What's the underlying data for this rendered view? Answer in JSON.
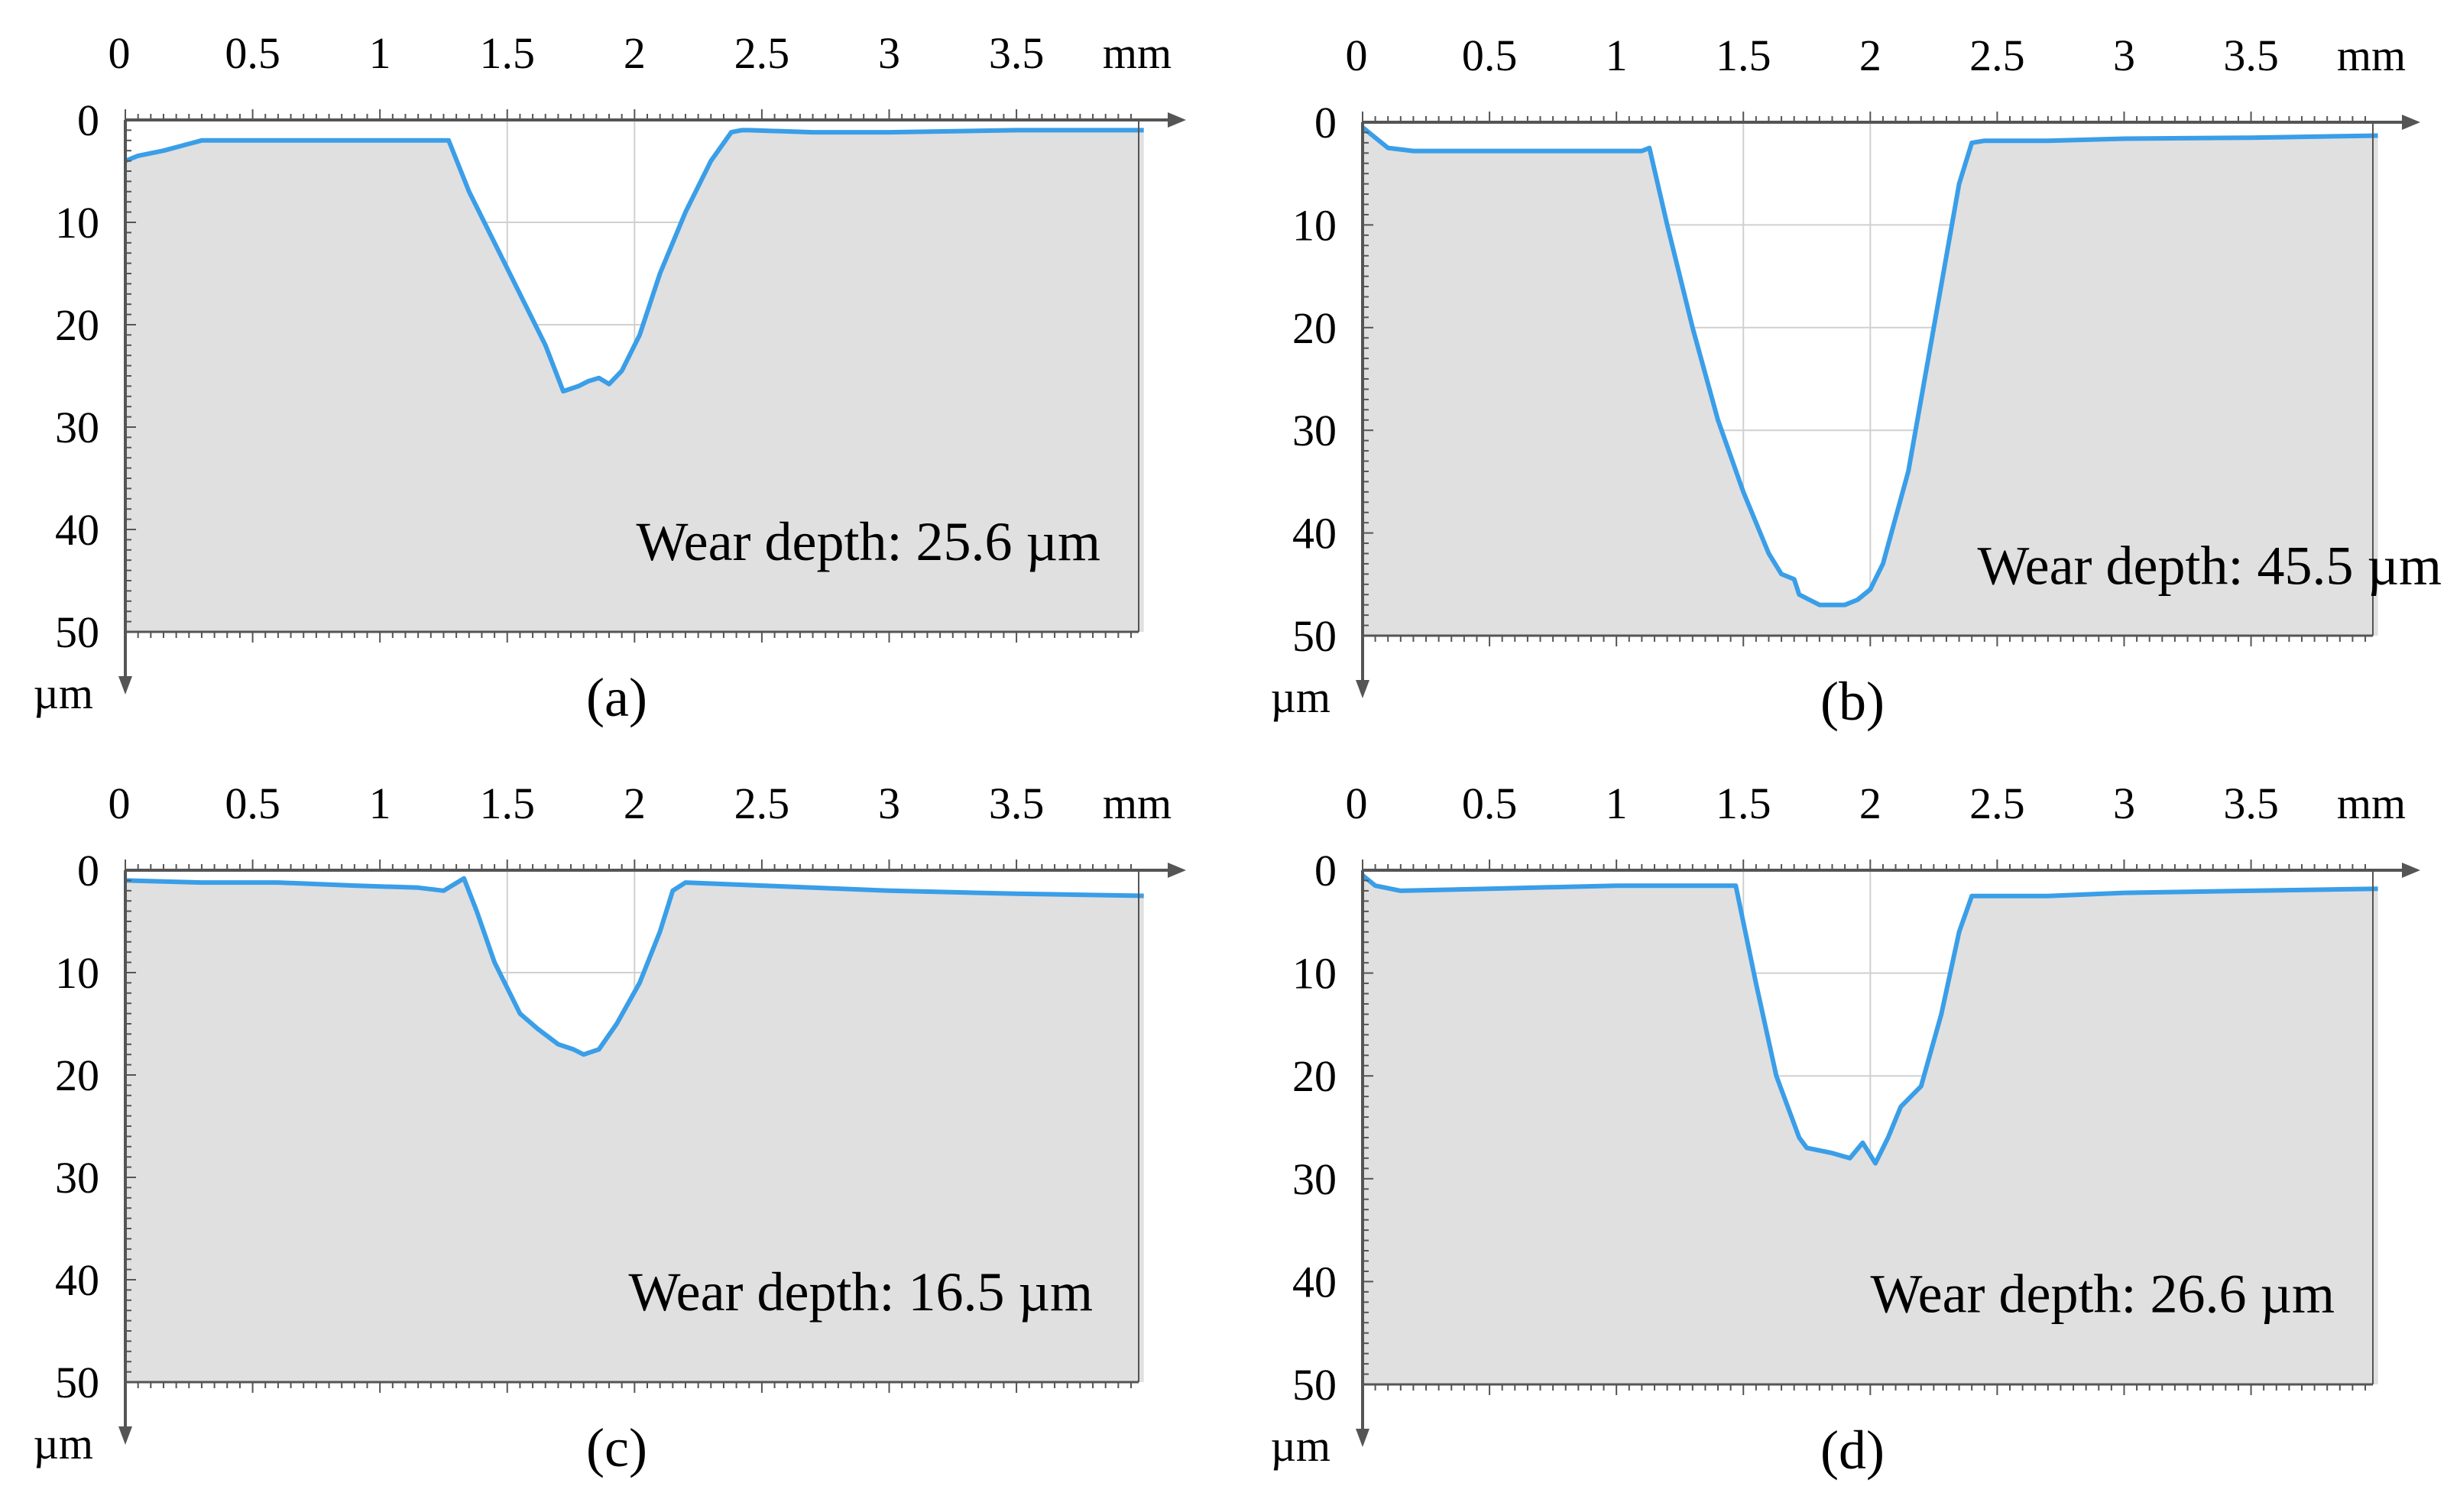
{
  "figure": {
    "colors": {
      "profile": "#3a9ee8",
      "fill": "#e0e0e0",
      "axis": "#555555",
      "grid": "#d0d0d0",
      "text": "#000000"
    },
    "x_unit": "mm",
    "y_unit": "µm",
    "x_tick_labels": [
      "0",
      "0.5",
      "1",
      "1.5",
      "2",
      "2.5",
      "3",
      "3.5"
    ],
    "y_tick_labels": [
      "0",
      "10",
      "20",
      "30",
      "40",
      "50"
    ]
  },
  "chart_data": [
    {
      "type": "line",
      "panel_label": "(a)",
      "annotation": "Wear depth: 25.6 µm",
      "xlabel": "mm",
      "ylabel": "µm",
      "xlim": [
        0,
        4.0
      ],
      "ylim": [
        0,
        50
      ],
      "y_inverted": true,
      "grid": true,
      "profile_x": [
        0,
        0.05,
        0.15,
        0.3,
        0.5,
        0.8,
        1.0,
        1.2,
        1.27,
        1.35,
        1.45,
        1.55,
        1.65,
        1.72,
        1.78,
        1.82,
        1.86,
        1.9,
        1.95,
        2.02,
        2.1,
        2.2,
        2.3,
        2.38,
        2.42,
        2.45,
        2.7,
        3.0,
        3.5,
        4.0
      ],
      "profile_y": [
        4,
        3.5,
        3,
        2,
        2,
        2,
        2,
        2,
        2,
        7,
        12,
        17,
        22,
        26.5,
        26,
        25.5,
        25.2,
        25.8,
        24.5,
        21,
        15,
        9,
        4,
        1.2,
        1,
        1,
        1.2,
        1.2,
        1,
        1
      ]
    },
    {
      "type": "line",
      "panel_label": "(b)",
      "annotation": "Wear depth: 45.5 µm",
      "xlabel": "mm",
      "ylabel": "µm",
      "xlim": [
        0,
        4.0
      ],
      "ylim": [
        0,
        50
      ],
      "y_inverted": true,
      "grid": true,
      "profile_x": [
        0,
        0.05,
        0.1,
        0.2,
        0.5,
        0.8,
        1.0,
        1.1,
        1.13,
        1.2,
        1.3,
        1.4,
        1.5,
        1.6,
        1.65,
        1.7,
        1.72,
        1.76,
        1.8,
        1.9,
        1.95,
        2.0,
        2.05,
        2.15,
        2.25,
        2.35,
        2.4,
        2.45,
        2.7,
        3.0,
        3.5,
        4.0
      ],
      "profile_y": [
        0.5,
        1.5,
        2.5,
        2.8,
        2.8,
        2.8,
        2.8,
        2.8,
        2.5,
        10,
        20,
        29,
        36,
        42,
        44,
        44.5,
        46,
        46.5,
        47,
        47,
        46.5,
        45.5,
        43,
        34,
        20,
        6,
        2,
        1.8,
        1.8,
        1.6,
        1.5,
        1.3
      ]
    },
    {
      "type": "line",
      "panel_label": "(c)",
      "annotation": "Wear depth: 16.5 µm",
      "xlabel": "mm",
      "ylabel": "µm",
      "xlim": [
        0,
        4.0
      ],
      "ylim": [
        0,
        50
      ],
      "y_inverted": true,
      "grid": true,
      "profile_x": [
        0,
        0.3,
        0.6,
        0.9,
        1.15,
        1.25,
        1.33,
        1.38,
        1.45,
        1.55,
        1.62,
        1.7,
        1.76,
        1.8,
        1.86,
        1.93,
        2.02,
        2.1,
        2.15,
        2.2,
        2.5,
        3.0,
        3.5,
        4.0
      ],
      "profile_y": [
        1,
        1.2,
        1.2,
        1.5,
        1.7,
        2,
        0.8,
        4,
        9,
        14,
        15.5,
        17,
        17.5,
        18,
        17.5,
        15,
        11,
        6,
        2,
        1.2,
        1.5,
        2,
        2.3,
        2.5
      ]
    },
    {
      "type": "line",
      "panel_label": "(d)",
      "annotation": "Wear depth: 26.6 µm",
      "xlabel": "mm",
      "ylabel": "µm",
      "xlim": [
        0,
        4.0
      ],
      "ylim": [
        0,
        50
      ],
      "y_inverted": true,
      "grid": true,
      "profile_x": [
        0,
        0.05,
        0.15,
        0.5,
        1.0,
        1.4,
        1.47,
        1.55,
        1.63,
        1.72,
        1.75,
        1.85,
        1.92,
        1.97,
        2.02,
        2.07,
        2.12,
        2.2,
        2.28,
        2.35,
        2.4,
        2.45,
        2.7,
        3.0,
        3.5,
        4.0
      ],
      "profile_y": [
        0.5,
        1.5,
        2,
        1.8,
        1.5,
        1.5,
        1.5,
        11,
        20,
        26,
        27,
        27.5,
        28,
        26.5,
        28.5,
        26,
        23,
        21,
        14,
        6,
        2.5,
        2.5,
        2.5,
        2.2,
        2,
        1.8
      ]
    }
  ]
}
